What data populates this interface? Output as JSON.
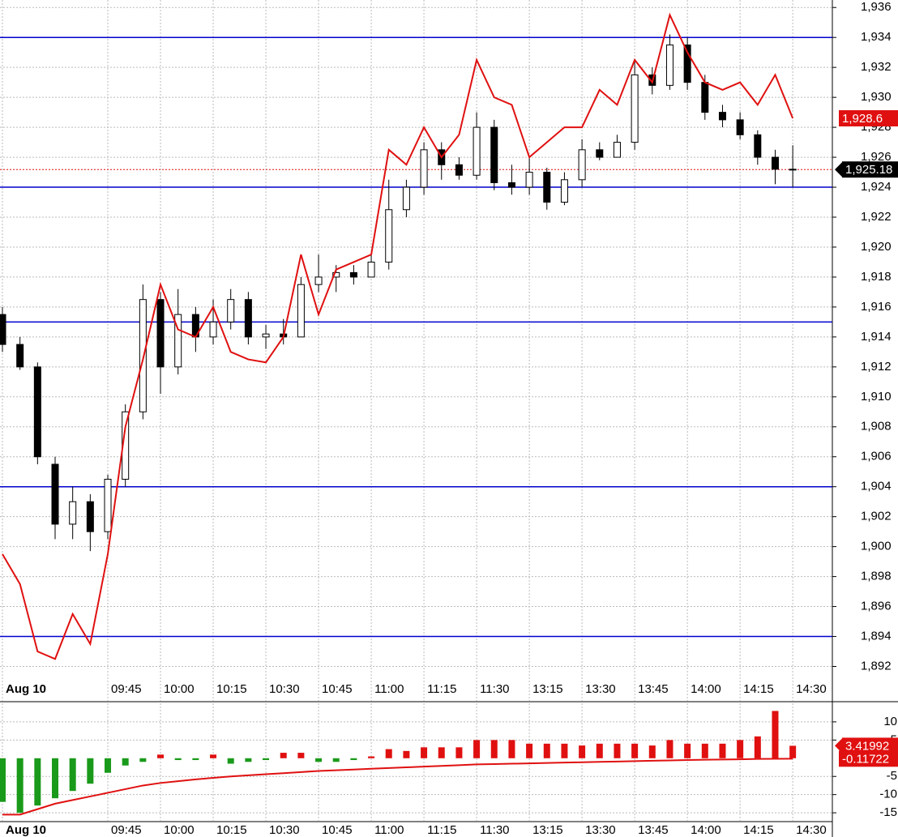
{
  "chart_data": [
    {
      "type": "candlestick",
      "categories": [
        "Aug 10",
        null,
        null,
        null,
        null,
        null,
        "09:45",
        null,
        null,
        "10:00",
        null,
        null,
        "10:15",
        null,
        null,
        "10:30",
        null,
        null,
        "10:45",
        null,
        null,
        "11:00",
        null,
        null,
        "11:15",
        null,
        null,
        "11:30",
        null,
        null,
        "13:15",
        null,
        null,
        "13:30",
        null,
        null,
        "13:45",
        null,
        null,
        "14:00",
        null,
        null,
        "14:15",
        null,
        null,
        "14:30"
      ],
      "open": [
        1915.5,
        1913.5,
        1912,
        1905.5,
        1901.5,
        1903,
        1901,
        1904.5,
        1909,
        1916.5,
        1912,
        1915.5,
        1914,
        1915,
        1916.5,
        1914,
        1914.2,
        1914,
        1917.5,
        1918,
        1918.3,
        1918,
        1919,
        1922.5,
        1924,
        1926.5,
        1925.5,
        1924.8,
        1928,
        1924.3,
        1924,
        1925,
        1923,
        1924.5,
        1926.5,
        1926,
        1927,
        1931.5,
        1930.8,
        1933.5,
        1931,
        1929,
        1928.5,
        1927.5,
        1926,
        1925.2
      ],
      "high": [
        1916,
        1914,
        1912.3,
        1906,
        1904,
        1903.5,
        1904.8,
        1909.5,
        1917.5,
        1917,
        1917.2,
        1916,
        1916.5,
        1917.2,
        1917,
        1914.8,
        1915.2,
        1918,
        1919.5,
        1918.8,
        1918.8,
        1919.5,
        1924.5,
        1924.5,
        1927,
        1927,
        1926,
        1929,
        1928.5,
        1925.5,
        1926,
        1925.3,
        1925,
        1927.2,
        1927,
        1927.5,
        1932.5,
        1932,
        1934.2,
        1934,
        1931.5,
        1929.5,
        1929,
        1927.8,
        1926.5,
        1926.8
      ],
      "low": [
        1913,
        1911.8,
        1905.5,
        1900.5,
        1900.5,
        1899.7,
        1900.5,
        1904,
        1908.5,
        1910.2,
        1911.5,
        1913,
        1913.5,
        1914.5,
        1913.5,
        1913.2,
        1913.5,
        1914,
        1917,
        1917,
        1917.5,
        1918,
        1918.5,
        1922,
        1923.5,
        1924.5,
        1924.5,
        1924.5,
        1923.8,
        1923.5,
        1923.5,
        1922.5,
        1922.8,
        1924,
        1925.8,
        1926,
        1926.5,
        1930.2,
        1930.5,
        1930.5,
        1928.5,
        1928,
        1927.2,
        1925.5,
        1924.2,
        1924
      ],
      "close": [
        1913.5,
        1912,
        1906,
        1901.5,
        1903,
        1901,
        1904.5,
        1909,
        1916.5,
        1912,
        1915.5,
        1914,
        1915,
        1916.5,
        1914,
        1914.2,
        1914,
        1917.5,
        1918,
        1918.3,
        1918,
        1919,
        1922.5,
        1924,
        1926.5,
        1925.5,
        1924.8,
        1928,
        1924.3,
        1924,
        1925,
        1923,
        1924.5,
        1926.5,
        1926,
        1927,
        1931.5,
        1930.8,
        1933.5,
        1931,
        1929,
        1928.5,
        1927.5,
        1926,
        1925.2,
        1925.18
      ],
      "overlay": {
        "color": "#e01010",
        "values": [
          1899.5,
          1897.5,
          1893,
          1892.5,
          1895.5,
          1893.5,
          1899.5,
          1908,
          1912.5,
          1917.5,
          1914.5,
          1914,
          1916,
          1913,
          1912.5,
          1912.3,
          1914,
          1919.5,
          1915.5,
          1918.5,
          1919,
          1919.5,
          1926.5,
          1925.5,
          1928,
          1926,
          1927.5,
          1932.5,
          1930,
          1929.5,
          1926,
          1927,
          1928,
          1928,
          1930.5,
          1929.5,
          1932.5,
          1931,
          1935.5,
          1933,
          1931,
          1930.5,
          1931,
          1929.5,
          1931.5,
          1928.6
        ]
      },
      "hlines": {
        "color": "#0000cc",
        "values": [
          1934,
          1924,
          1915,
          1904,
          1894
        ]
      },
      "last_price": {
        "value": 1925.18,
        "label": "1,925.18",
        "color": "#000000"
      },
      "overlay_last": {
        "value": 1928.6,
        "label": "1,928.6",
        "color": "#e01010"
      },
      "ylim": [
        1889.7,
        1936.5
      ],
      "yticks": [
        {
          "value": 1892,
          "label": "1,892"
        },
        {
          "value": 1894,
          "label": "1,894"
        },
        {
          "value": 1896,
          "label": "1,896"
        },
        {
          "value": 1898,
          "label": "1,898"
        },
        {
          "value": 1900,
          "label": "1,900"
        },
        {
          "value": 1902,
          "label": "1,902"
        },
        {
          "value": 1904,
          "label": "1,904"
        },
        {
          "value": 1906,
          "label": "1,906"
        },
        {
          "value": 1908,
          "label": "1,908"
        },
        {
          "value": 1910,
          "label": "1,910"
        },
        {
          "value": 1912,
          "label": "1,912"
        },
        {
          "value": 1914,
          "label": "1,914"
        },
        {
          "value": 1916,
          "label": "1,916"
        },
        {
          "value": 1918,
          "label": "1,918"
        },
        {
          "value": 1920,
          "label": "1,920"
        },
        {
          "value": 1922,
          "label": "1,922"
        },
        {
          "value": 1924,
          "label": "1,924"
        },
        {
          "value": 1926,
          "label": "1,926"
        },
        {
          "value": 1928,
          "label": "1,928"
        },
        {
          "value": 1930,
          "label": "1,930"
        },
        {
          "value": 1932,
          "label": "1,932"
        },
        {
          "value": 1934,
          "label": "1,934"
        },
        {
          "value": 1936,
          "label": "1,936"
        }
      ],
      "grid": true
    },
    {
      "type": "bar",
      "categories": [
        "Aug 10",
        null,
        null,
        null,
        null,
        null,
        "09:45",
        null,
        null,
        "10:00",
        null,
        null,
        "10:15",
        null,
        null,
        "10:30",
        null,
        null,
        "10:45",
        null,
        null,
        "11:00",
        null,
        null,
        "11:15",
        null,
        null,
        "11:30",
        null,
        null,
        "13:15",
        null,
        null,
        "13:30",
        null,
        null,
        "13:45",
        null,
        null,
        "14:00",
        null,
        null,
        "14:15",
        null,
        null,
        "14:30"
      ],
      "values": [
        -12,
        -15,
        -13,
        -11,
        -9,
        -7,
        -4,
        -2,
        -1,
        1,
        -0.5,
        -0.5,
        1,
        -1.5,
        -1,
        -0.5,
        1.5,
        1.5,
        -1,
        -1,
        -0.5,
        0.5,
        2.5,
        2,
        3,
        3,
        3,
        5,
        5,
        5,
        4,
        4,
        4,
        3.5,
        4,
        4,
        4,
        3.5,
        5,
        4,
        4,
        4,
        5,
        6,
        13,
        3.41992
      ],
      "colors": {
        "up": "#e01010",
        "down": "#1a9a1a"
      },
      "line": {
        "color": "#e01010",
        "values": [
          -15.5,
          -15.5,
          -14,
          -12.5,
          -11.5,
          -10.5,
          -9.5,
          -8.5,
          -7.5,
          -6.8,
          -6.3,
          -5.8,
          -5.4,
          -5,
          -4.7,
          -4.4,
          -4.1,
          -3.8,
          -3.5,
          -3.3,
          -3.1,
          -2.9,
          -2.7,
          -2.5,
          -2.3,
          -2.1,
          -1.9,
          -1.7,
          -1.6,
          -1.5,
          -1.4,
          -1.3,
          -1.2,
          -1.1,
          -1,
          -0.9,
          -0.8,
          -0.7,
          -0.6,
          -0.5,
          -0.4,
          -0.35,
          -0.3,
          -0.2,
          -0.15,
          -0.11722
        ]
      },
      "last_value": {
        "value": 3.41992,
        "label": "3.41992",
        "color": "#e01010"
      },
      "line_last": {
        "value": -0.11722,
        "label": "-0.11722",
        "color": "#e01010"
      },
      "ylim": [
        -17.2,
        15.1
      ],
      "yticks": [
        -15,
        -10,
        -5,
        5,
        10
      ],
      "grid": true
    }
  ]
}
